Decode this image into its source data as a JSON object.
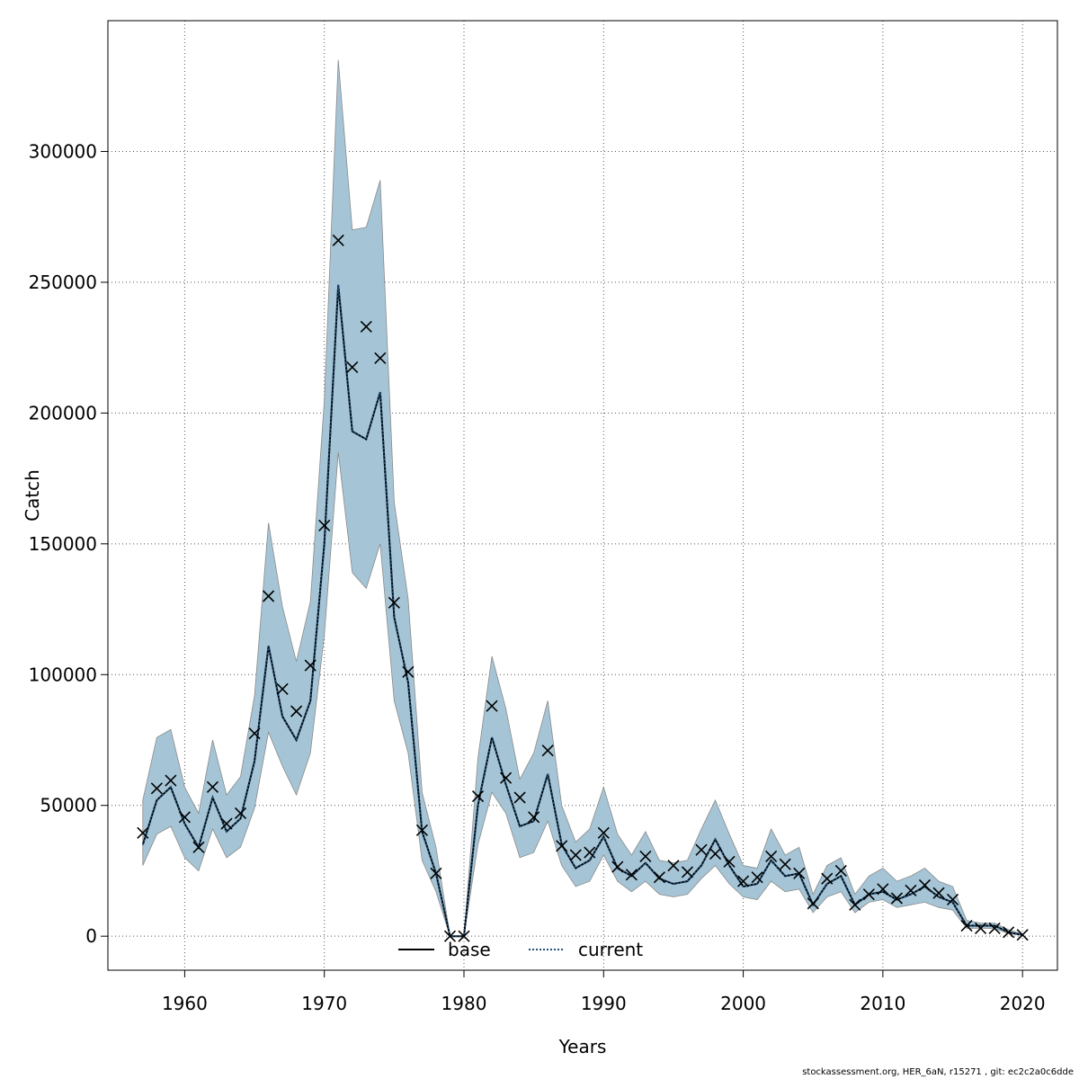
{
  "chart_data": {
    "type": "line",
    "xlabel": "Years",
    "ylabel": "Catch",
    "xlim": [
      1954.5,
      2022.5
    ],
    "ylim": [
      -13000,
      350000
    ],
    "x_ticks": [
      1960,
      1970,
      1980,
      1990,
      2000,
      2010,
      2020
    ],
    "y_ticks": [
      0,
      50000,
      100000,
      150000,
      200000,
      250000,
      300000
    ],
    "x_tick_labels": [
      "1960",
      "1970",
      "1980",
      "1990",
      "2000",
      "2010",
      "2020"
    ],
    "y_tick_labels": [
      "0",
      "50000",
      "100000",
      "150000",
      "200000",
      "250000",
      "300000"
    ],
    "grid": true,
    "legend_position": "bottom-center",
    "colors": {
      "band": "#a5c5d6",
      "band_edge": "#8a8a8a",
      "current_line": "#1f4e79",
      "base_line": "#000000",
      "marker": "#000000",
      "grid": "#555555"
    },
    "years": [
      1957,
      1958,
      1959,
      1960,
      1961,
      1962,
      1963,
      1964,
      1965,
      1966,
      1967,
      1968,
      1969,
      1970,
      1971,
      1972,
      1973,
      1974,
      1975,
      1976,
      1977,
      1978,
      1979,
      1980,
      1981,
      1982,
      1983,
      1984,
      1985,
      1986,
      1987,
      1988,
      1989,
      1990,
      1991,
      1992,
      1993,
      1994,
      1995,
      1996,
      1997,
      1998,
      1999,
      2000,
      2001,
      2002,
      2003,
      2004,
      2005,
      2006,
      2007,
      2008,
      2009,
      2010,
      2011,
      2012,
      2013,
      2014,
      2015,
      2016,
      2017,
      2018,
      2019,
      2020
    ],
    "series": [
      {
        "name": "base",
        "style": "solid",
        "values": [
          35000,
          52000,
          57000,
          43000,
          34000,
          53000,
          40000,
          45000,
          67000,
          111000,
          84000,
          75000,
          90000,
          150000,
          249000,
          193000,
          190000,
          208000,
          122000,
          97000,
          40000,
          24000,
          0,
          0,
          50000,
          76000,
          58000,
          42000,
          44000,
          62000,
          35000,
          26000,
          29000,
          38000,
          26000,
          23000,
          28000,
          22000,
          20000,
          21000,
          27000,
          37000,
          27000,
          19000,
          20000,
          29000,
          23000,
          24000,
          12000,
          20000,
          23000,
          12000,
          16000,
          17000,
          14000,
          16000,
          19000,
          15000,
          13000,
          4000,
          4000,
          4000,
          1500,
          500
        ]
      },
      {
        "name": "current",
        "style": "dotted",
        "values": [
          35000,
          52000,
          57000,
          43000,
          34000,
          53000,
          40000,
          45000,
          67000,
          111000,
          84000,
          75000,
          90000,
          150000,
          249000,
          193000,
          190000,
          208000,
          122000,
          97000,
          40000,
          24000,
          0,
          0,
          50000,
          76000,
          58000,
          42000,
          44000,
          62000,
          35000,
          26000,
          29000,
          38000,
          26000,
          23000,
          28000,
          22000,
          20000,
          21000,
          27000,
          37000,
          27000,
          19000,
          20000,
          29000,
          23000,
          24000,
          12000,
          20000,
          23000,
          12000,
          16000,
          17000,
          14000,
          16000,
          19000,
          15000,
          13000,
          4000,
          4000,
          4000,
          1500,
          500
        ]
      }
    ],
    "confidence_band": {
      "lower": [
        27000,
        39000,
        42000,
        30000,
        25000,
        41000,
        30000,
        34000,
        49000,
        78000,
        65000,
        54000,
        70000,
        115000,
        185000,
        139000,
        133000,
        150000,
        90000,
        70000,
        29000,
        17000,
        0,
        0,
        35000,
        55000,
        47000,
        30000,
        32000,
        44000,
        27000,
        19000,
        21000,
        31000,
        21000,
        17000,
        21000,
        16000,
        15000,
        16000,
        22000,
        27000,
        20000,
        15000,
        14000,
        21000,
        17000,
        18000,
        9000,
        15000,
        17000,
        9000,
        13000,
        14000,
        11000,
        12000,
        13000,
        11000,
        10000,
        3000,
        3000,
        3000,
        1000,
        300
      ],
      "upper": [
        52000,
        76000,
        79000,
        57000,
        47000,
        75000,
        54000,
        61000,
        92000,
        158000,
        126000,
        105000,
        128000,
        205000,
        335000,
        270000,
        271000,
        289000,
        166000,
        129000,
        55000,
        34000,
        0,
        0,
        68000,
        107000,
        87000,
        60000,
        70000,
        90000,
        50000,
        36000,
        41000,
        57000,
        39000,
        31000,
        40000,
        29000,
        28000,
        29000,
        41000,
        52000,
        39000,
        27000,
        26000,
        41000,
        31000,
        34000,
        16000,
        27000,
        30000,
        16000,
        23000,
        26000,
        21000,
        23000,
        26000,
        21000,
        19000,
        6000,
        5000,
        5000,
        2500,
        800
      ]
    },
    "observed": [
      39500,
      56500,
      59500,
      45500,
      34000,
      57000,
      43000,
      47000,
      77500,
      130000,
      94500,
      86000,
      103500,
      157000,
      266000,
      217500,
      233000,
      221000,
      127500,
      101000,
      40500,
      24000,
      0,
      0,
      53500,
      88000,
      60500,
      53000,
      45500,
      71000,
      34500,
      31000,
      32000,
      39500,
      26500,
      23500,
      30500,
      22500,
      27000,
      24500,
      33000,
      31500,
      28500,
      21000,
      22500,
      30500,
      27500,
      24000,
      12500,
      22000,
      25000,
      12000,
      16000,
      18000,
      14500,
      17500,
      19500,
      16500,
      14000,
      4000,
      3000,
      3000,
      1500,
      500
    ]
  },
  "footer": "stockassessment.org, HER_6aN, r15271 , git: ec2c2a0c6dde"
}
